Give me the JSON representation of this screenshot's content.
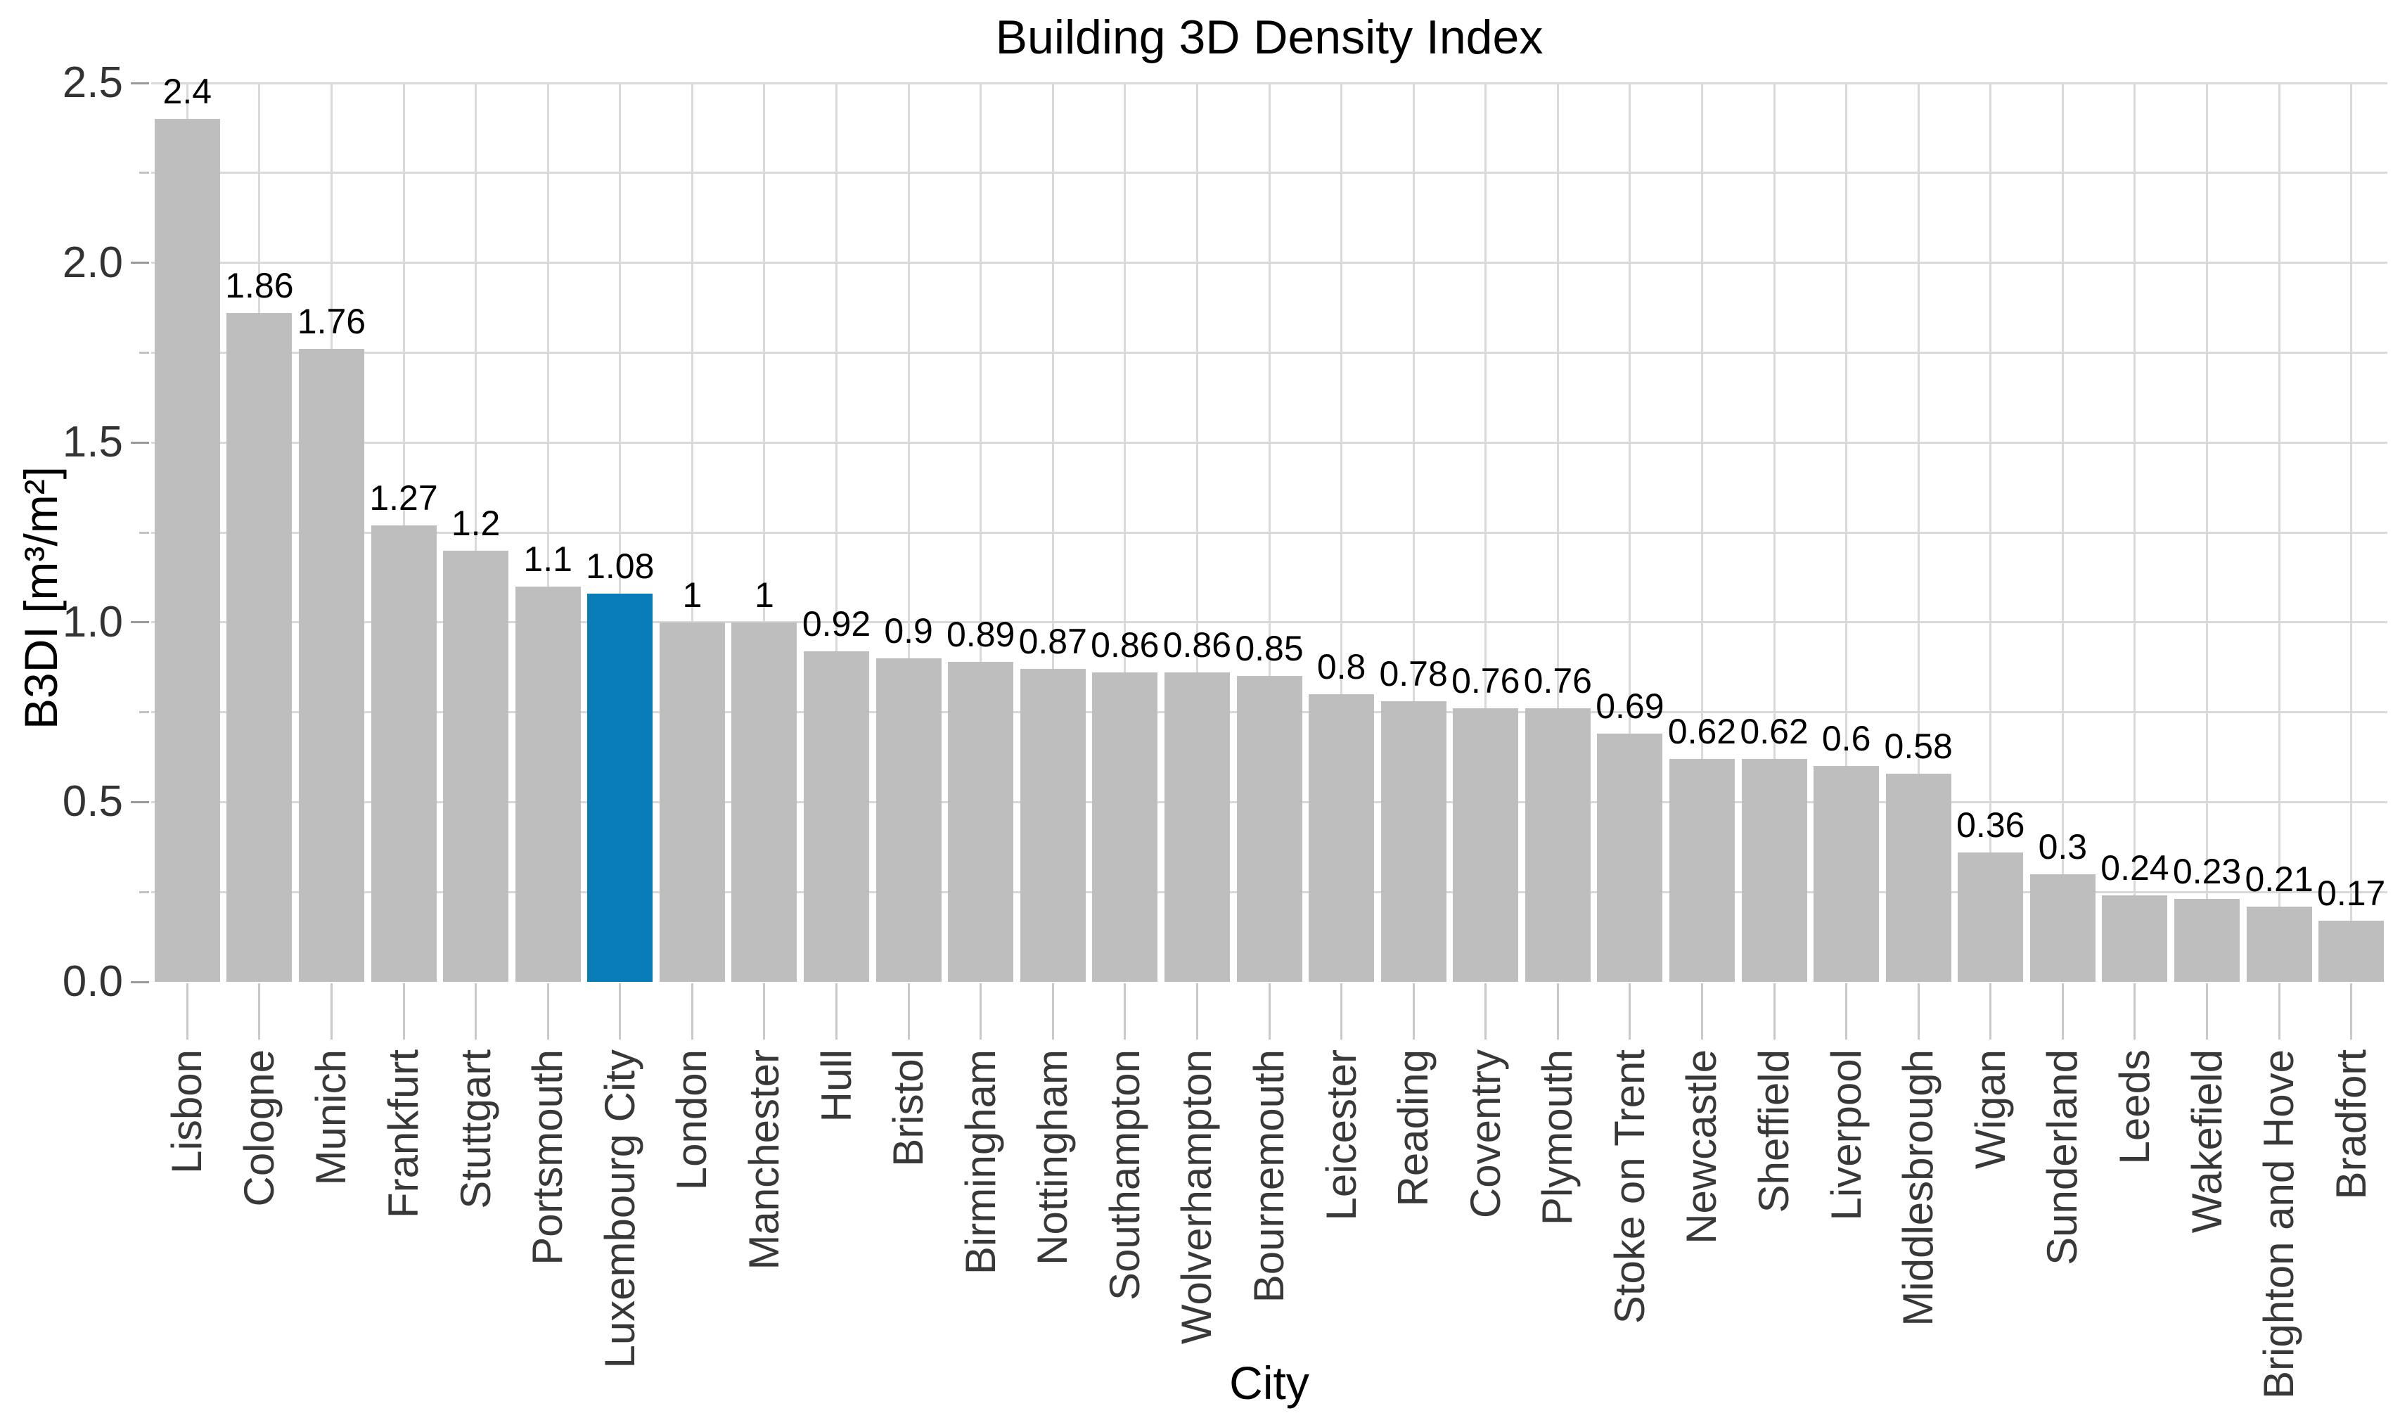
{
  "chart_data": {
    "type": "bar",
    "title": "Building 3D Density Index",
    "xlabel": "City",
    "ylabel": "B3DI [m³/m²]",
    "ylim": [
      0,
      2.5
    ],
    "ytick_labels": [
      "0.0",
      "0.5",
      "1.0",
      "1.5",
      "2.0",
      "2.5"
    ],
    "ytick_minor_step": 0.25,
    "grid": true,
    "legend": "none",
    "categories": [
      "Lisbon",
      "Cologne",
      "Munich",
      "Frankfurt",
      "Stuttgart",
      "Portsmouth",
      "Luxembourg City",
      "London",
      "Manchester",
      "Hull",
      "Bristol",
      "Birmingham",
      "Nottingham",
      "Southampton",
      "Wolverhampton",
      "Bournemouth",
      "Leicester",
      "Reading",
      "Coventry",
      "Plymouth",
      "Stoke on Trent",
      "Newcastle",
      "Sheffield",
      "Liverpool",
      "Middlesbrough",
      "Wigan",
      "Sunderland",
      "Leeds",
      "Wakefield",
      "Brighton and Hove",
      "Bradfort"
    ],
    "values": [
      2.4,
      1.86,
      1.76,
      1.27,
      1.2,
      1.1,
      1.08,
      1,
      1,
      0.92,
      0.9,
      0.89,
      0.87,
      0.86,
      0.86,
      0.85,
      0.8,
      0.78,
      0.76,
      0.76,
      0.69,
      0.62,
      0.62,
      0.6,
      0.58,
      0.36,
      0.3,
      0.24,
      0.23,
      0.21,
      0.17
    ],
    "value_labels": [
      "2.4",
      "1.86",
      "1.76",
      "1.27",
      "1.2",
      "1.1",
      "1.08",
      "1",
      "1",
      "0.92",
      "0.9",
      "0.89",
      "0.87",
      "0.86",
      "0.86",
      "0.85",
      "0.8",
      "0.78",
      "0.76",
      "0.76",
      "0.69",
      "0.62",
      "0.62",
      "0.6",
      "0.58",
      "0.36",
      "0.3",
      "0.24",
      "0.23",
      "0.21",
      "0.17"
    ],
    "highlight_category": "Luxembourg City",
    "highlight_index": 6,
    "colors": {
      "bar_default": "#bebebe",
      "bar_highlight": "#087db8",
      "gridline": "#d9d9d9",
      "tick_major": "#9a9a9a",
      "tick_minor": "#c2c2c2"
    }
  }
}
